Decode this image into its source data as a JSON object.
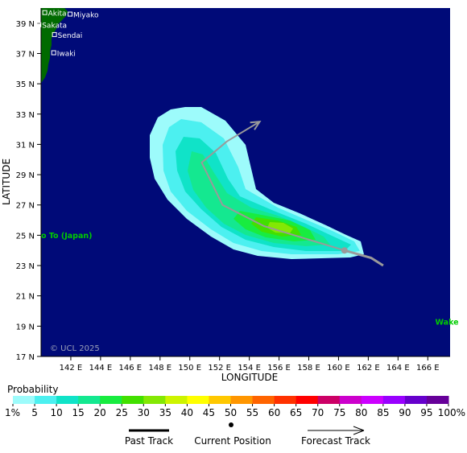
{
  "map": {
    "lat_ticks": [
      "17 N",
      "19 N",
      "21 N",
      "23 N",
      "25 N",
      "27 N",
      "29 N",
      "31 N",
      "33 N",
      "35 N",
      "37 N",
      "39 N"
    ],
    "lon_ticks": [
      "142 E",
      "144 E",
      "146 E",
      "148 E",
      "150 E",
      "152 E",
      "154 E",
      "156 E",
      "158 E",
      "160 E",
      "162 E",
      "164 E",
      "166 E"
    ],
    "y_axis_title": "LATITUDE",
    "x_axis_title": "LONGITUDE",
    "lat_range": [
      17,
      40
    ],
    "lon_range": [
      140,
      167.5
    ],
    "copyright": "© UCL 2025",
    "places": [
      {
        "name": "Akita",
        "lon": 140.25,
        "lat": 39.7
      },
      {
        "name": "Miyako",
        "lon": 141.95,
        "lat": 39.6
      },
      {
        "name": "Sakata",
        "lon": 139.85,
        "lat": 38.9
      },
      {
        "name": "Sendai",
        "lon": 140.9,
        "lat": 38.25
      },
      {
        "name": "Iwaki",
        "lon": 140.85,
        "lat": 37.05
      }
    ],
    "island_labels": [
      {
        "name": "o To (Japan)",
        "lon": 140.0,
        "lat": 24.8
      },
      {
        "name": "Wake",
        "lon": 166.5,
        "lat": 19.1
      }
    ],
    "colors": {
      "ocean": "#000a78",
      "land": "#006a00",
      "island_label": "#00cc00",
      "track": "#9a9a9a"
    },
    "past_track": [
      [
        163.0,
        23.0
      ],
      [
        162.2,
        23.5
      ],
      [
        160.4,
        24.0
      ]
    ],
    "current_position": [
      160.4,
      24.0
    ],
    "forecast_track": [
      [
        160.4,
        24.0
      ],
      [
        155.0,
        25.6
      ],
      [
        152.2,
        27.0
      ],
      [
        150.8,
        29.8
      ],
      [
        152.5,
        31.2
      ],
      [
        154.7,
        32.5
      ]
    ]
  },
  "legend": {
    "title": "Probability",
    "labels": [
      "1%",
      "5",
      "10",
      "15",
      "20",
      "25",
      "30",
      "35",
      "40",
      "45",
      "50",
      "55",
      "60",
      "65",
      "70",
      "75",
      "80",
      "85",
      "90",
      "95",
      "100%"
    ],
    "colors": [
      "#9dfbfb",
      "#4cf0f0",
      "#10e3c8",
      "#14e890",
      "#18ec40",
      "#42e000",
      "#84e804",
      "#cdf400",
      "#ffff00",
      "#ffc800",
      "#ff9600",
      "#ff6400",
      "#ff3200",
      "#ff0000",
      "#cc0066",
      "#cc00cc",
      "#cc00ff",
      "#9900ff",
      "#6600cc",
      "#660099",
      "#660066"
    ]
  },
  "key": {
    "past_track": "Past Track",
    "current_position": "Current Position",
    "forecast_track": "Forecast Track"
  }
}
